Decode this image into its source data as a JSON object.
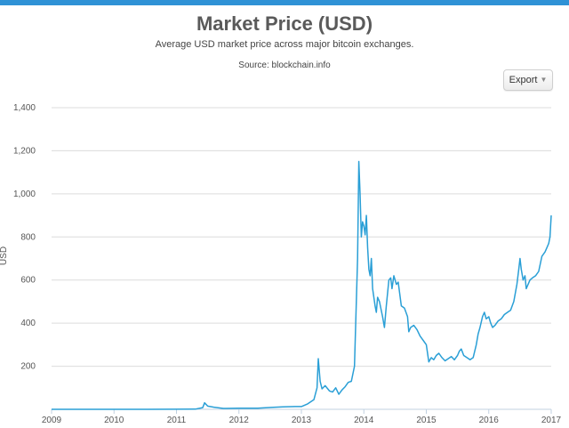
{
  "header": {
    "title": "Market Price (USD)",
    "subtitle": "Average USD market price across major bitcoin exchanges.",
    "source": "Source: blockchain.info"
  },
  "toolbar": {
    "export_label": "Export",
    "export_icon": "chevron-down-icon"
  },
  "colors": {
    "line": "#2a9fd6",
    "accent_bar": "#2f92d6",
    "grid": "#dcdcdc"
  },
  "chart_data": {
    "type": "line",
    "title": "Market Price (USD)",
    "subtitle": "Average USD market price across major bitcoin exchanges.",
    "xlabel": "",
    "ylabel": "USD",
    "xlim": [
      2009,
      2017
    ],
    "ylim": [
      0,
      1400
    ],
    "xticks": [
      "2009",
      "2010",
      "2011",
      "2012",
      "2013",
      "2014",
      "2015",
      "2016",
      "2017"
    ],
    "yticks": [
      "200",
      "400",
      "600",
      "800",
      "1,000",
      "1,200",
      "1,400"
    ],
    "grid": true,
    "legend": "none",
    "series": [
      {
        "x": [
          2009.0,
          2010.0,
          2010.55,
          2011.0,
          2011.3,
          2011.42,
          2011.45,
          2011.5,
          2011.6,
          2011.75,
          2012.0,
          2012.3,
          2012.55,
          2012.7,
          2012.9,
          2013.0,
          2013.1,
          2013.2,
          2013.25,
          2013.27,
          2013.3,
          2013.33,
          2013.38,
          2013.45,
          2013.5,
          2013.55,
          2013.6,
          2013.65,
          2013.7,
          2013.75,
          2013.8,
          2013.85,
          2013.87,
          2013.9,
          2013.92,
          2013.94,
          2013.96,
          2013.98,
          2014.0,
          2014.02,
          2014.04,
          2014.06,
          2014.08,
          2014.1,
          2014.12,
          2014.14,
          2014.18,
          2014.2,
          2014.22,
          2014.25,
          2014.3,
          2014.33,
          2014.36,
          2014.4,
          2014.43,
          2014.45,
          2014.48,
          2014.5,
          2014.52,
          2014.55,
          2014.6,
          2014.65,
          2014.7,
          2014.72,
          2014.75,
          2014.8,
          2014.85,
          2014.9,
          2014.95,
          2015.0,
          2015.02,
          2015.04,
          2015.08,
          2015.12,
          2015.16,
          2015.2,
          2015.25,
          2015.3,
          2015.35,
          2015.4,
          2015.45,
          2015.5,
          2015.53,
          2015.56,
          2015.6,
          2015.65,
          2015.7,
          2015.75,
          2015.8,
          2015.83,
          2015.86,
          2015.9,
          2015.93,
          2015.96,
          2016.0,
          2016.03,
          2016.06,
          2016.1,
          2016.15,
          2016.2,
          2016.25,
          2016.3,
          2016.35,
          2016.4,
          2016.45,
          2016.48,
          2016.5,
          2016.52,
          2016.55,
          2016.58,
          2016.6,
          2016.63,
          2016.66,
          2016.7,
          2016.75,
          2016.8,
          2016.85,
          2016.9,
          2016.93,
          2016.96,
          2016.98,
          2017.0
        ],
        "y": [
          0,
          0,
          0.1,
          0.3,
          1,
          8,
          30,
          15,
          10,
          4,
          5,
          5,
          9,
          11,
          13,
          13,
          25,
          45,
          100,
          235,
          130,
          95,
          110,
          85,
          80,
          100,
          70,
          90,
          105,
          125,
          130,
          200,
          400,
          700,
          1150,
          1000,
          800,
          870,
          850,
          810,
          900,
          750,
          650,
          620,
          700,
          560,
          480,
          450,
          520,
          500,
          430,
          380,
          480,
          600,
          610,
          560,
          620,
          600,
          580,
          590,
          480,
          470,
          430,
          360,
          380,
          390,
          370,
          340,
          320,
          300,
          260,
          220,
          240,
          230,
          250,
          260,
          240,
          225,
          235,
          245,
          230,
          250,
          270,
          280,
          250,
          240,
          230,
          240,
          300,
          350,
          380,
          430,
          450,
          420,
          430,
          400,
          380,
          390,
          410,
          420,
          440,
          450,
          460,
          500,
          580,
          650,
          700,
          650,
          600,
          620,
          560,
          580,
          600,
          610,
          620,
          640,
          710,
          730,
          750,
          770,
          800,
          900
        ]
      }
    ]
  }
}
